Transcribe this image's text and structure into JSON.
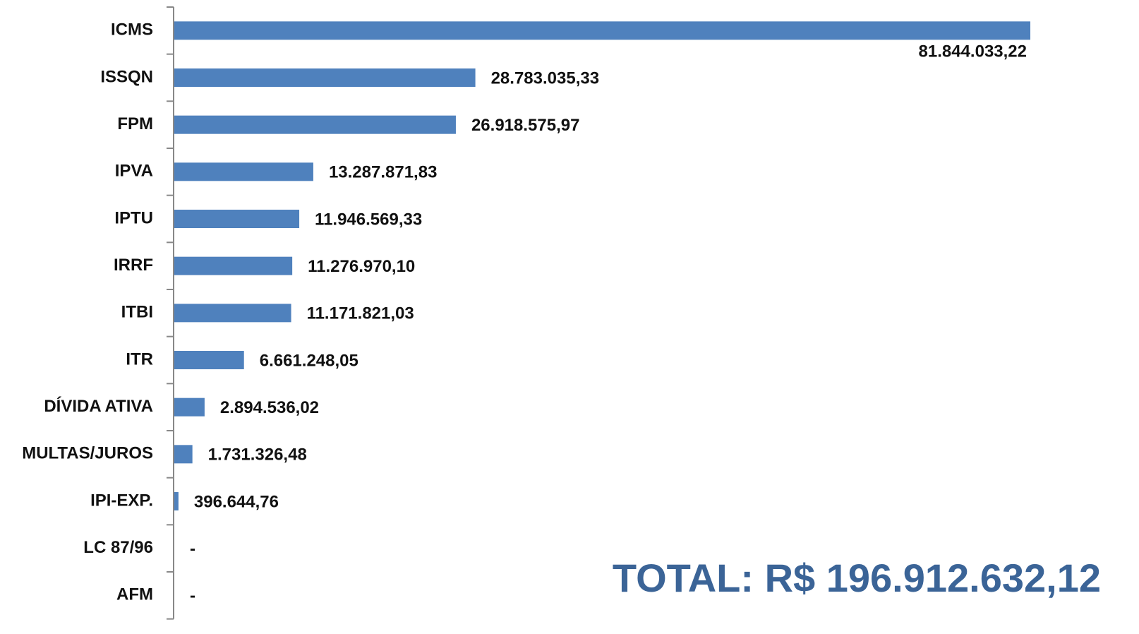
{
  "chart_data": {
    "type": "bar",
    "orientation": "horizontal",
    "categories": [
      "ICMS",
      "ISSQN",
      "FPM",
      "IPVA",
      "IPTU",
      "IRRF",
      "ITBI",
      "ITR",
      "DÍVIDA ATIVA",
      "MULTAS/JUROS",
      "IPI-EXP.",
      "LC 87/96",
      "AFM"
    ],
    "values": [
      81844033.22,
      28783035.33,
      26918575.97,
      13287871.83,
      11946569.33,
      11276970.1,
      11171821.03,
      6661248.05,
      2894536.02,
      1731326.48,
      396644.76,
      0,
      0
    ],
    "value_labels": [
      "81.844.033,22",
      "28.783.035,33",
      "26.918.575,97",
      "13.287.871,83",
      "11.946.569,33",
      "11.276.970,10",
      "11.171.821,03",
      "6.661.248,05",
      "2.894.536,02",
      "1.731.326,48",
      "396.644,76",
      "-",
      "-"
    ],
    "color": "#4f81bd",
    "annotation": "TOTAL: R$ 196.912.632,12"
  }
}
